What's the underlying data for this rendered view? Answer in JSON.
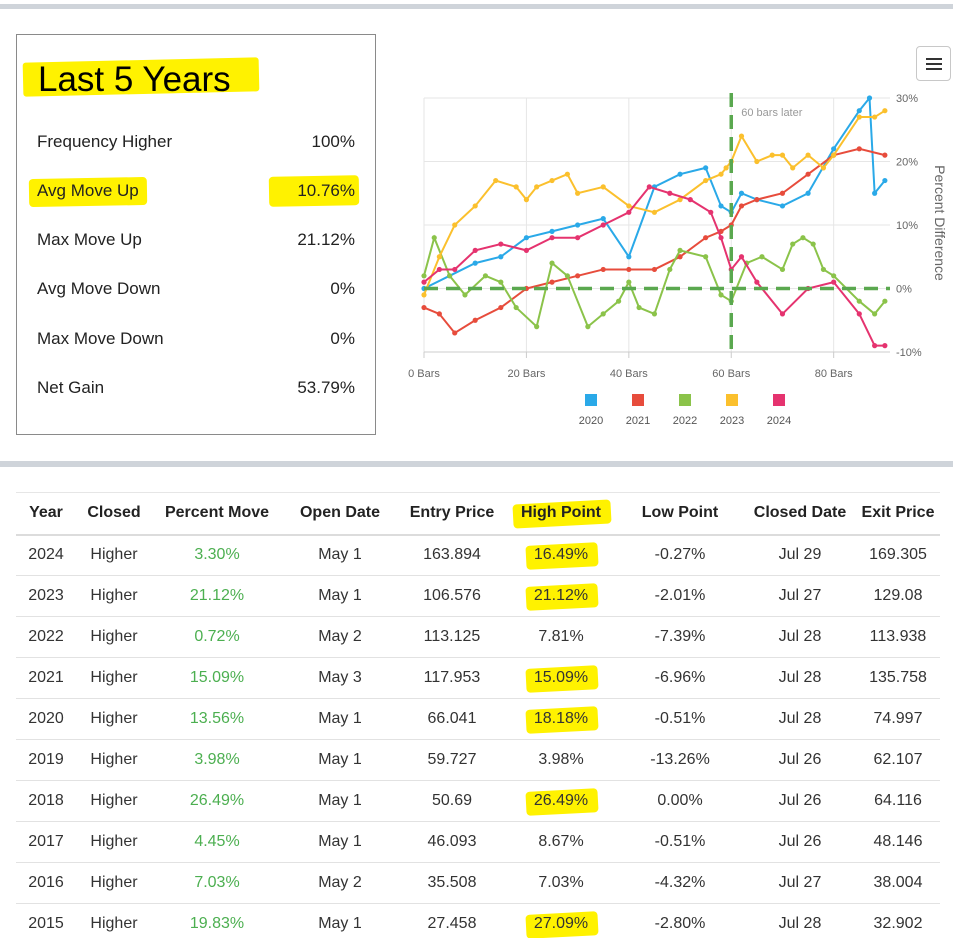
{
  "stats": {
    "title": "Last 5 Years",
    "rows": [
      {
        "label": "Frequency Higher",
        "value": "100%",
        "highlight": false
      },
      {
        "label": "Avg Move Up",
        "value": "10.76%",
        "highlight": true
      },
      {
        "label": "Max Move Up",
        "value": "21.12%",
        "highlight": false
      },
      {
        "label": "Avg Move Down",
        "value": "0%",
        "highlight": false
      },
      {
        "label": "Max Move Down",
        "value": "0%",
        "highlight": false
      },
      {
        "label": "Net Gain",
        "value": "53.79%",
        "highlight": false
      }
    ]
  },
  "menu_icon": "hamburger-menu-icon",
  "colors": {
    "highlight": "#fff200",
    "positive": "#4caf50",
    "marker_line": "#5aa84f",
    "series_2020": "#2aa9e8",
    "series_2021": "#e74c3c",
    "series_2022": "#8bc34a",
    "series_2023": "#fbc02d",
    "series_2024": "#e5336f"
  },
  "chart_data": {
    "type": "line",
    "xlabel": "",
    "ylabel": "Percent Difference",
    "x_tick_labels": [
      "0 Bars",
      "20 Bars",
      "40 Bars",
      "60 Bars",
      "80 Bars"
    ],
    "x_ticks": [
      0,
      20,
      40,
      60,
      80
    ],
    "y_tick_labels": [
      "30%",
      "20%",
      "10%",
      "0%",
      "-10%"
    ],
    "y_ticks": [
      30,
      20,
      10,
      0,
      -10
    ],
    "xlim": [
      0,
      91
    ],
    "ylim": [
      -10,
      30
    ],
    "annotation": "60 bars later",
    "annotation_x": 60,
    "zero_line": 0,
    "legend_position": "bottom",
    "series": [
      {
        "name": "2020",
        "color": "#2aa9e8",
        "x": [
          0,
          5,
          10,
          15,
          20,
          25,
          30,
          35,
          40,
          45,
          50,
          55,
          58,
          60,
          62,
          65,
          70,
          75,
          80,
          85,
          87,
          88,
          90
        ],
        "values": [
          0,
          2,
          4,
          5,
          8,
          9,
          10,
          11,
          5,
          16,
          18,
          19,
          13,
          12,
          15,
          14,
          13,
          15,
          22,
          28,
          30,
          15,
          17
        ]
      },
      {
        "name": "2021",
        "color": "#e74c3c",
        "x": [
          0,
          3,
          6,
          10,
          15,
          20,
          25,
          30,
          35,
          40,
          45,
          50,
          55,
          58,
          60,
          62,
          65,
          70,
          75,
          80,
          85,
          90
        ],
        "values": [
          -3,
          -4,
          -7,
          -5,
          -3,
          0,
          1,
          2,
          3,
          3,
          3,
          5,
          8,
          9,
          10,
          13,
          14,
          15,
          18,
          21,
          22,
          21
        ]
      },
      {
        "name": "2022",
        "color": "#8bc34a",
        "x": [
          0,
          2,
          5,
          8,
          12,
          15,
          18,
          22,
          25,
          28,
          32,
          35,
          38,
          40,
          42,
          45,
          48,
          50,
          55,
          58,
          60,
          63,
          66,
          70,
          72,
          74,
          76,
          78,
          80,
          85,
          88,
          90
        ],
        "values": [
          2,
          8,
          2,
          -1,
          2,
          1,
          -3,
          -6,
          4,
          2,
          -6,
          -4,
          -2,
          1,
          -3,
          -4,
          3,
          6,
          5,
          -1,
          -2,
          4,
          5,
          3,
          7,
          8,
          7,
          3,
          2,
          -2,
          -4,
          -2
        ]
      },
      {
        "name": "2023",
        "color": "#fbc02d",
        "x": [
          0,
          3,
          6,
          10,
          14,
          18,
          20,
          22,
          25,
          28,
          30,
          35,
          40,
          45,
          50,
          55,
          58,
          59,
          60,
          62,
          65,
          68,
          70,
          72,
          75,
          78,
          80,
          85,
          88,
          90
        ],
        "values": [
          -1,
          5,
          10,
          13,
          17,
          16,
          14,
          16,
          17,
          18,
          15,
          16,
          13,
          12,
          14,
          17,
          18,
          19,
          20,
          24,
          20,
          21,
          21,
          19,
          21,
          19,
          21,
          27,
          27,
          28
        ]
      },
      {
        "name": "2024",
        "color": "#e5336f",
        "x": [
          0,
          3,
          6,
          10,
          15,
          20,
          25,
          30,
          35,
          40,
          44,
          48,
          52,
          56,
          58,
          60,
          62,
          65,
          70,
          75,
          80,
          85,
          88,
          90
        ],
        "values": [
          1,
          3,
          3,
          6,
          7,
          6,
          8,
          8,
          10,
          12,
          16,
          15,
          14,
          12,
          8,
          3,
          5,
          1,
          -4,
          0,
          1,
          -4,
          -9,
          -9
        ]
      }
    ]
  },
  "table": {
    "columns": [
      "Year",
      "Closed",
      "Percent Move",
      "Open Date",
      "Entry Price",
      "High Point",
      "Low Point",
      "Closed Date",
      "Exit Price"
    ],
    "highlight_header": "High Point",
    "rows": [
      {
        "year": "2024",
        "closed": "Higher",
        "move": "3.30%",
        "open": "May 1",
        "entry": "163.894",
        "high": "16.49%",
        "high_hl": true,
        "low": "-0.27%",
        "closed_date": "Jul 29",
        "exit": "169.305"
      },
      {
        "year": "2023",
        "closed": "Higher",
        "move": "21.12%",
        "open": "May 1",
        "entry": "106.576",
        "high": "21.12%",
        "high_hl": true,
        "low": "-2.01%",
        "closed_date": "Jul 27",
        "exit": "129.08"
      },
      {
        "year": "2022",
        "closed": "Higher",
        "move": "0.72%",
        "open": "May 2",
        "entry": "113.125",
        "high": "7.81%",
        "high_hl": false,
        "low": "-7.39%",
        "closed_date": "Jul 28",
        "exit": "113.938"
      },
      {
        "year": "2021",
        "closed": "Higher",
        "move": "15.09%",
        "open": "May 3",
        "entry": "117.953",
        "high": "15.09%",
        "high_hl": true,
        "low": "-6.96%",
        "closed_date": "Jul 28",
        "exit": "135.758"
      },
      {
        "year": "2020",
        "closed": "Higher",
        "move": "13.56%",
        "open": "May 1",
        "entry": "66.041",
        "high": "18.18%",
        "high_hl": true,
        "low": "-0.51%",
        "closed_date": "Jul 28",
        "exit": "74.997"
      },
      {
        "year": "2019",
        "closed": "Higher",
        "move": "3.98%",
        "open": "May 1",
        "entry": "59.727",
        "high": "3.98%",
        "high_hl": false,
        "low": "-13.26%",
        "closed_date": "Jul 26",
        "exit": "62.107"
      },
      {
        "year": "2018",
        "closed": "Higher",
        "move": "26.49%",
        "open": "May 1",
        "entry": "50.69",
        "high": "26.49%",
        "high_hl": true,
        "low": "0.00%",
        "closed_date": "Jul 26",
        "exit": "64.116"
      },
      {
        "year": "2017",
        "closed": "Higher",
        "move": "4.45%",
        "open": "May 1",
        "entry": "46.093",
        "high": "8.67%",
        "high_hl": false,
        "low": "-0.51%",
        "closed_date": "Jul 26",
        "exit": "48.146"
      },
      {
        "year": "2016",
        "closed": "Higher",
        "move": "7.03%",
        "open": "May 2",
        "entry": "35.508",
        "high": "7.03%",
        "high_hl": false,
        "low": "-4.32%",
        "closed_date": "Jul 27",
        "exit": "38.004"
      },
      {
        "year": "2015",
        "closed": "Higher",
        "move": "19.83%",
        "open": "May 1",
        "entry": "27.458",
        "high": "27.09%",
        "high_hl": true,
        "low": "-2.80%",
        "closed_date": "Jul 28",
        "exit": "32.902"
      }
    ]
  }
}
